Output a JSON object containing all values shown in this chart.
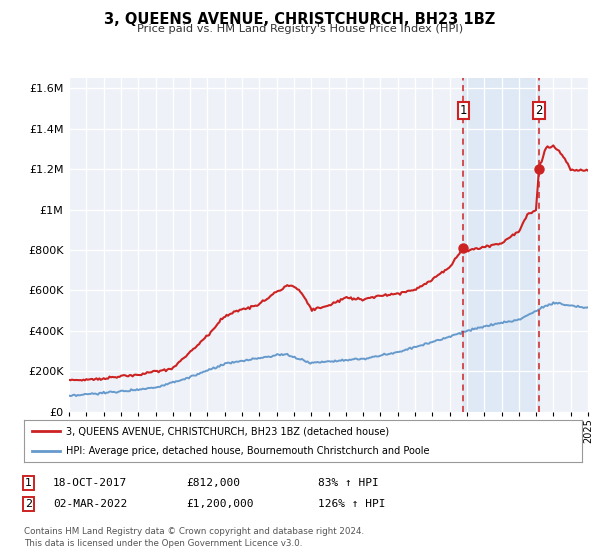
{
  "title": "3, QUEENS AVENUE, CHRISTCHURCH, BH23 1BZ",
  "subtitle": "Price paid vs. HM Land Registry's House Price Index (HPI)",
  "background_color": "#ffffff",
  "plot_bg_color": "#eef2f8",
  "grid_color": "#ffffff",
  "sale1_date": "18-OCT-2017",
  "sale1_price": 812000,
  "sale1_pct": "83%",
  "sale2_date": "02-MAR-2022",
  "sale2_price": 1200000,
  "sale2_pct": "126%",
  "legend_line1": "3, QUEENS AVENUE, CHRISTCHURCH, BH23 1BZ (detached house)",
  "legend_line2": "HPI: Average price, detached house, Bournemouth Christchurch and Poole",
  "footer1": "Contains HM Land Registry data © Crown copyright and database right 2024.",
  "footer2": "This data is licensed under the Open Government Licence v3.0.",
  "hpi_color": "#6699cc",
  "price_color": "#cc2222",
  "vline1_x": 2017.8,
  "vline2_x": 2022.15,
  "marker1_x": 2017.8,
  "marker1_y": 812000,
  "marker2_x": 2022.15,
  "marker2_y": 1200000,
  "xmin": 1995,
  "xmax": 2025,
  "ymin": 0,
  "ymax": 1650000,
  "yticks": [
    0,
    200000,
    400000,
    600000,
    800000,
    1000000,
    1200000,
    1400000,
    1600000
  ],
  "hpi_keypoints_x": [
    1995,
    1996,
    1998,
    2000,
    2002,
    2004,
    2006,
    2007.5,
    2009,
    2010,
    2012,
    2014,
    2016,
    2018,
    2019,
    2020,
    2021,
    2022,
    2023,
    2024,
    2025
  ],
  "hpi_keypoints_y": [
    75000,
    85000,
    100000,
    120000,
    170000,
    235000,
    265000,
    285000,
    240000,
    250000,
    260000,
    295000,
    345000,
    400000,
    420000,
    440000,
    455000,
    500000,
    540000,
    525000,
    515000
  ],
  "price_keypoints_x": [
    1995,
    1996,
    1997,
    1998,
    1999,
    2000,
    2001,
    2002,
    2003,
    2004,
    2005,
    2006,
    2007,
    2007.8,
    2008.5,
    2009,
    2010,
    2011,
    2012,
    2013,
    2014,
    2015,
    2016,
    2017,
    2017.8,
    2018,
    2019,
    2020,
    2021,
    2021.5,
    2022.0,
    2022.15,
    2022.6,
    2023.0,
    2023.5,
    2024.0,
    2025.0
  ],
  "price_keypoints_y": [
    155000,
    158000,
    165000,
    175000,
    182000,
    198000,
    215000,
    295000,
    375000,
    475000,
    505000,
    530000,
    595000,
    630000,
    585000,
    505000,
    525000,
    565000,
    555000,
    575000,
    585000,
    605000,
    655000,
    715000,
    812000,
    795000,
    815000,
    835000,
    895000,
    975000,
    995000,
    1200000,
    1310000,
    1315000,
    1275000,
    1195000,
    1195000
  ]
}
